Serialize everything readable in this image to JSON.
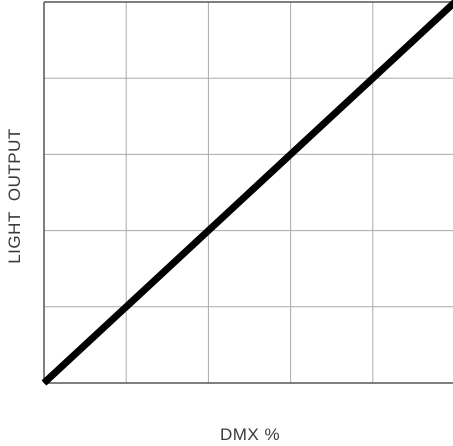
{
  "chart_data": {
    "type": "line",
    "title": "",
    "xlabel": "DMX %",
    "ylabel": "LIGHT  OUTPUT",
    "xlim": [
      0,
      100
    ],
    "ylim": [
      0,
      100
    ],
    "grid": true,
    "x_grid_divisions": 5,
    "y_grid_divisions": 5,
    "x_tick_labels_shown": false,
    "y_tick_labels_shown": false,
    "series": [
      {
        "x": [
          0,
          100
        ],
        "y": [
          0,
          100
        ],
        "color": "#000000"
      }
    ],
    "colors": {
      "grid": "#aaaaaa",
      "frame": "#555555",
      "line": "#000000",
      "text": "#3a3a3a"
    }
  }
}
